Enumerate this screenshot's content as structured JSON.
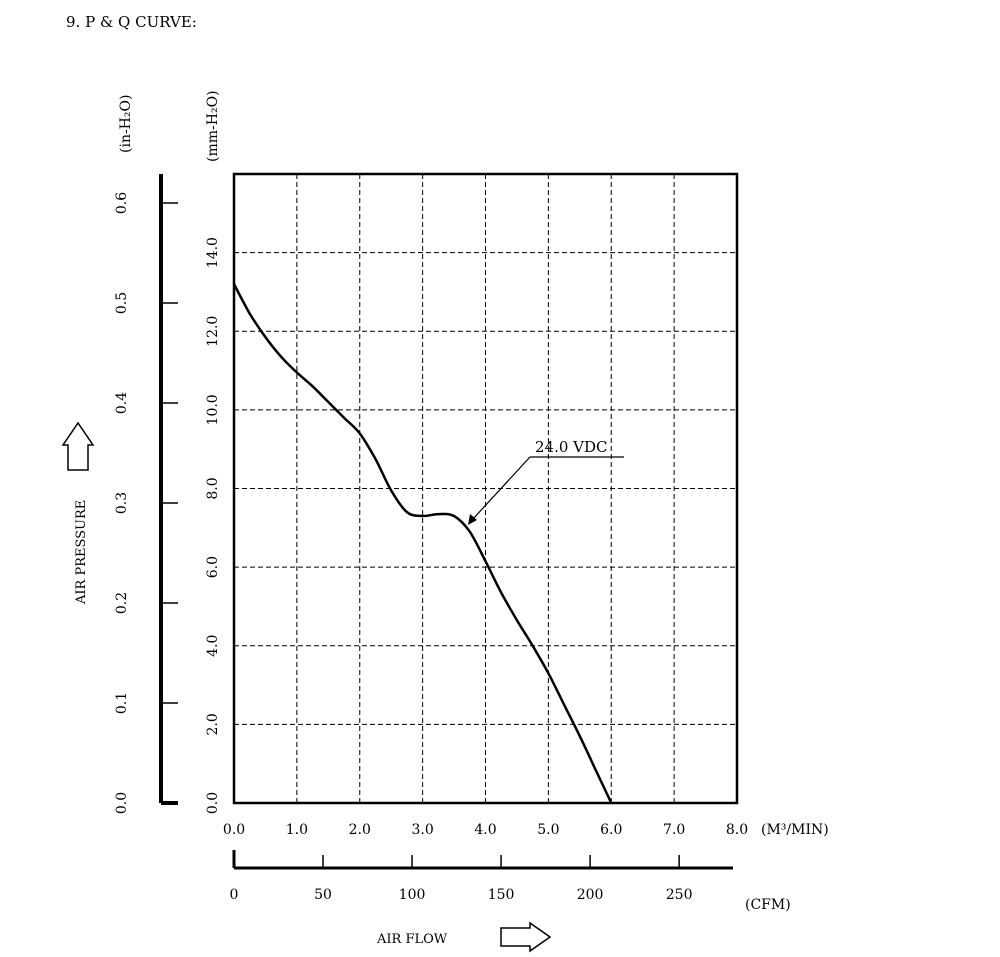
{
  "page_title": "9. P & Q CURVE:",
  "chart_data": {
    "type": "line",
    "series": [
      {
        "name": "24.0 VDC",
        "x": [
          0.0,
          0.25,
          0.5,
          0.75,
          1.0,
          1.25,
          1.5,
          1.75,
          2.0,
          2.25,
          2.5,
          2.75,
          3.0,
          3.25,
          3.5,
          3.75,
          4.0,
          4.25,
          4.5,
          4.75,
          5.0,
          5.25,
          5.5,
          5.75,
          6.0
        ],
        "y": [
          13.2,
          12.45,
          11.85,
          11.35,
          10.95,
          10.6,
          10.2,
          9.8,
          9.4,
          8.75,
          7.95,
          7.4,
          7.3,
          7.35,
          7.3,
          6.9,
          6.15,
          5.35,
          4.65,
          4.0,
          3.3,
          2.5,
          1.7,
          0.85,
          0.0
        ]
      }
    ],
    "series_label": "24.0 VDC",
    "x_primary": {
      "unit": "(M³/MIN)",
      "range": [
        0,
        8
      ],
      "ticks": [
        "0.0",
        "1.0",
        "2.0",
        "3.0",
        "4.0",
        "5.0",
        "6.0",
        "7.0",
        "8.0"
      ]
    },
    "x_secondary": {
      "unit": "(CFM)",
      "label": "AIR FLOW",
      "range": [
        0,
        282.5
      ],
      "ticks": [
        "0",
        "50",
        "100",
        "150",
        "200",
        "250"
      ],
      "tick_values": [
        0,
        50,
        100,
        150,
        200,
        250
      ]
    },
    "y_primary": {
      "unit": "(mm-H₂O)",
      "range": [
        0,
        16
      ],
      "ticks": [
        "0.0",
        "2.0",
        "4.0",
        "6.0",
        "8.0",
        "10.0",
        "12.0",
        "14.0"
      ],
      "tick_values": [
        0,
        2,
        4,
        6,
        8,
        10,
        12,
        14
      ]
    },
    "y_secondary": {
      "unit": "(in-H₂O)",
      "label": "AIR PRESSURE",
      "range": [
        0,
        0.6
      ],
      "ticks": [
        "0.0",
        "0.1",
        "0.2",
        "0.3",
        "0.4",
        "0.5",
        "0.6"
      ],
      "tick_values": [
        0.0,
        0.1,
        0.2,
        0.3,
        0.4,
        0.5,
        0.6
      ]
    },
    "grid": true,
    "grid_style": "dashed"
  }
}
